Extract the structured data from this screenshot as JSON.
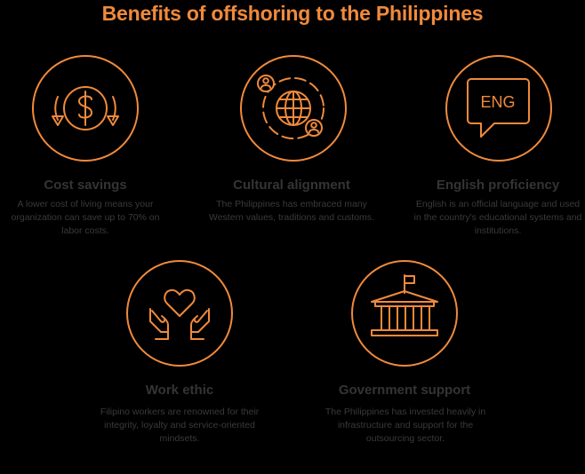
{
  "page": {
    "title": "Benefits of offshoring to the Philippines",
    "accent_color": "#F08A3C",
    "text_color": "#343434",
    "background": "#000000"
  },
  "benefits": [
    {
      "icon": "dollar-coin-arrows-icon",
      "title": "Cost savings",
      "description": "A lower cost of living means your organization can save up to 70% on labor costs."
    },
    {
      "icon": "globe-people-icon",
      "title": "Cultural alignment",
      "description": "The Philippines has embraced many Western values, traditions and customs."
    },
    {
      "icon": "speech-bubble-icon",
      "icon_text": "ENG",
      "title": "English proficiency",
      "description": "English is an official language and used in the country's educational systems and institutions."
    },
    {
      "icon": "heart-hands-icon",
      "title": "Work ethic",
      "description": "Filipino workers are renowned for their integrity, loyalty and service-oriented mindsets."
    },
    {
      "icon": "government-building-icon",
      "title": "Government support",
      "description": "The Philippines has invested heavily in infrastructure and support for the outsourcing sector."
    }
  ]
}
